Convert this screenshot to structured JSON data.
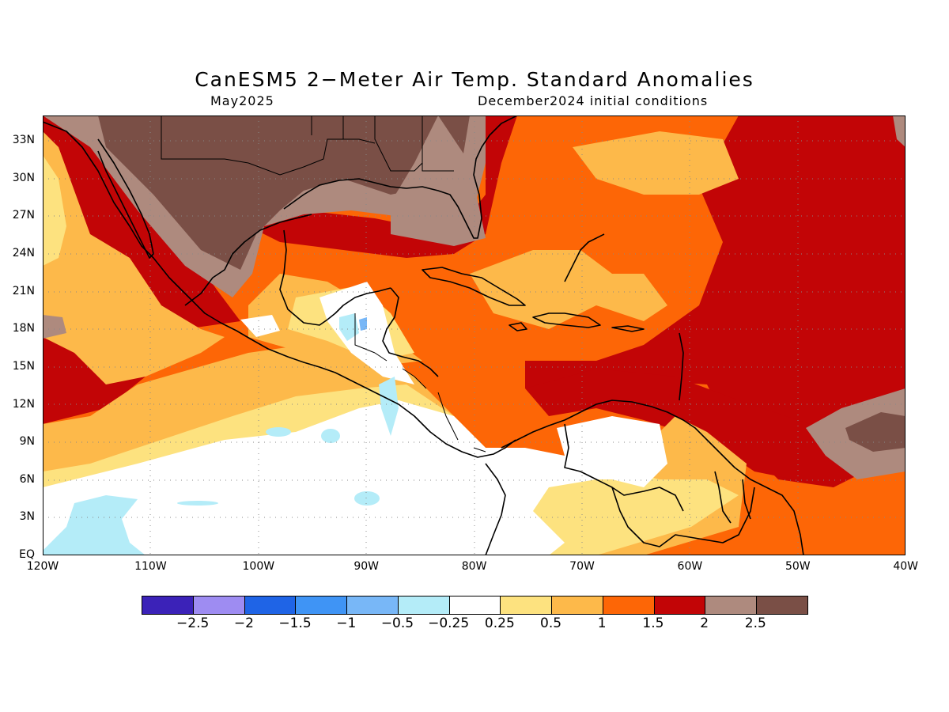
{
  "title": "CanESM5 2−Meter Air Temp. Standard Anomalies",
  "subtitle_left": "May2025",
  "subtitle_right": "December2024 initial conditions",
  "lat_labels": [
    "33N",
    "30N",
    "27N",
    "24N",
    "21N",
    "18N",
    "15N",
    "12N",
    "9N",
    "6N",
    "3N",
    "EQ"
  ],
  "lon_labels": [
    "120W",
    "110W",
    "100W",
    "90W",
    "80W",
    "70W",
    "60W",
    "50W",
    "40W"
  ],
  "colorbar": {
    "colors": [
      "#3b22b8",
      "#9e8cf2",
      "#1f64e6",
      "#3f94f5",
      "#78b7f7",
      "#b4ecf8",
      "#ffffff",
      "#fde27f",
      "#fdb94a",
      "#fd6606",
      "#c20506",
      "#ae8a7e",
      "#7a4f46"
    ],
    "labels": [
      "−2.5",
      "−2",
      "−1.5",
      "−1",
      "−0.5",
      "−0.25",
      "0.25",
      "0.5",
      "1",
      "1.5",
      "2",
      "2.5"
    ]
  },
  "map_data": {
    "region": {
      "lon_range": [
        -120,
        -40
      ],
      "lat_range": [
        0,
        35
      ]
    },
    "levels": [
      -2.5,
      -2,
      -1.5,
      -1,
      -0.5,
      -0.25,
      0.25,
      0.5,
      1,
      1.5,
      2,
      2.5
    ]
  }
}
